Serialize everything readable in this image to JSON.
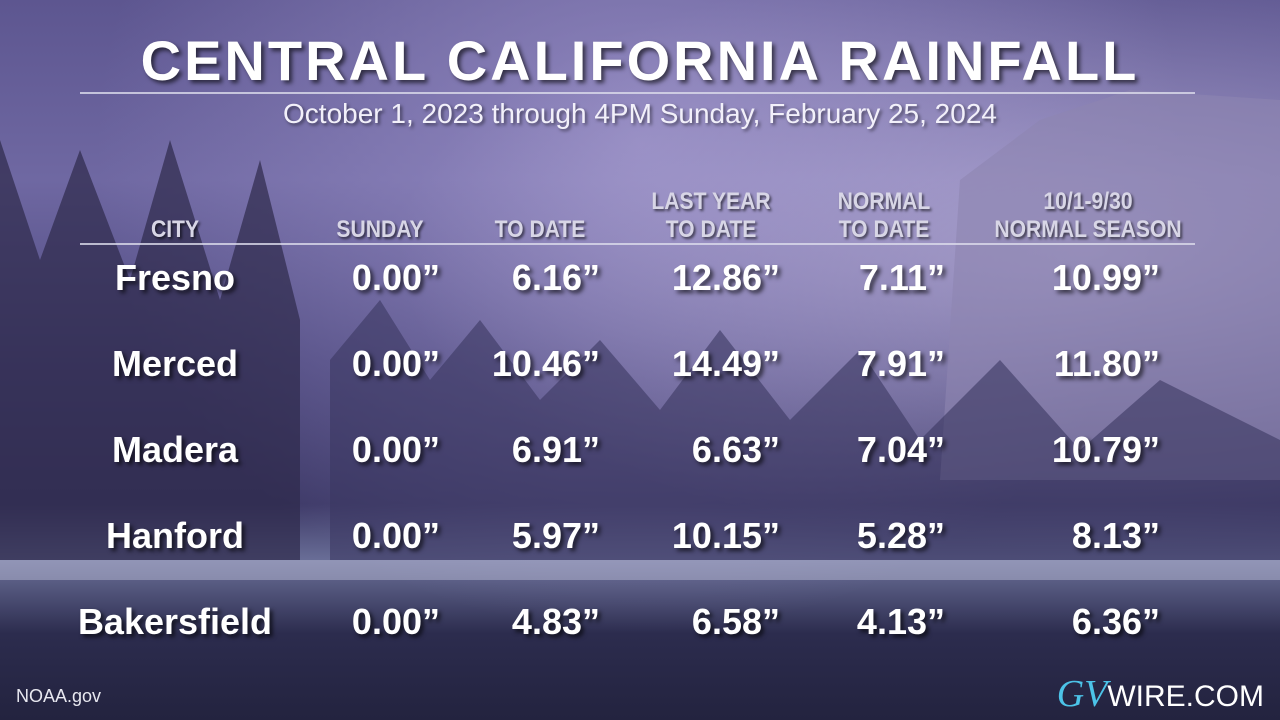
{
  "header": {
    "title": "CENTRAL CALIFORNIA RAINFALL",
    "subtitle": "October 1, 2023  through  4PM Sunday, February 25, 2024"
  },
  "table": {
    "columns": [
      [
        "CITY"
      ],
      [
        "SUNDAY"
      ],
      [
        "TO DATE"
      ],
      [
        "LAST YEAR",
        "TO DATE"
      ],
      [
        "NORMAL",
        "TO DATE"
      ],
      [
        "10/1-9/30",
        "NORMAL SEASON"
      ]
    ],
    "rows": [
      [
        "Fresno",
        "0.00”",
        "6.16”",
        "12.86”",
        "7.11”",
        "10.99”"
      ],
      [
        "Merced",
        "0.00”",
        "10.46”",
        "14.49”",
        "7.91”",
        "11.80”"
      ],
      [
        "Madera",
        "0.00”",
        "6.91”",
        "6.63”",
        "7.04”",
        "10.79”"
      ],
      [
        "Hanford",
        "0.00”",
        "5.97”",
        "10.15”",
        "5.28”",
        "8.13”"
      ],
      [
        "Bakersfield",
        "0.00”",
        "4.83”",
        "6.58”",
        "4.13”",
        "6.36”"
      ]
    ]
  },
  "footer": {
    "source": "NOAA.gov",
    "logo_mark": "GV",
    "logo_text": "WIRE.COM"
  }
}
